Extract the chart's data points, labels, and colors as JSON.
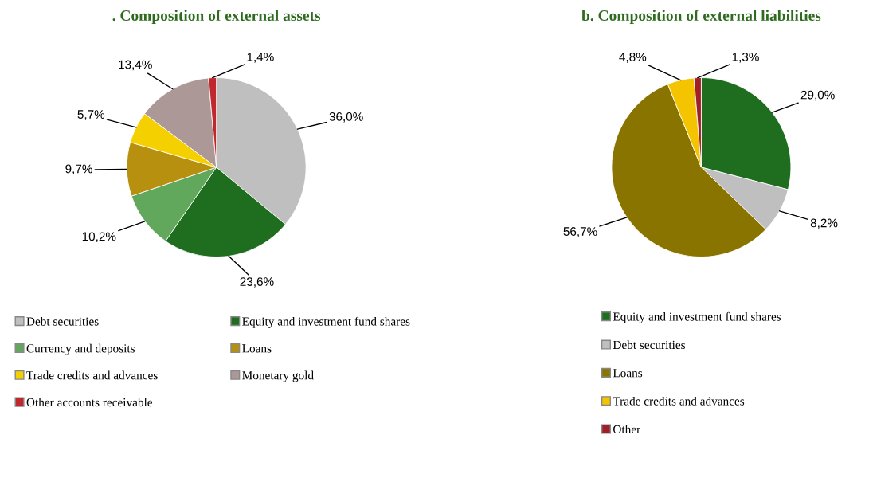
{
  "chart_data": [
    {
      "type": "pie",
      "title": ". Composition of external assets",
      "categories": [
        "Debt securities",
        "Equity and investment fund shares",
        "Currency and deposits",
        "Loans",
        "Trade credits and advances",
        "Monetary gold",
        "Other accounts receivable"
      ],
      "values": [
        36.0,
        23.6,
        10.2,
        9.7,
        5.7,
        13.4,
        1.4
      ],
      "value_labels": [
        "36,0%",
        "23,6%",
        "10,2%",
        "9,7%",
        "5,7%",
        "13,4%",
        "1,4%"
      ],
      "colors": [
        "#bfbfbf",
        "#1f6e1f",
        "#62a85c",
        "#b8900f",
        "#f5d000",
        "#ad9898",
        "#c0282d"
      ],
      "legend": "bottom"
    },
    {
      "type": "pie",
      "title": "b. Composition of external liabilities",
      "categories": [
        "Equity and investment fund shares",
        "Debt securities",
        "Loans",
        "Trade credits and advances",
        "Other"
      ],
      "values": [
        29.0,
        8.2,
        56.7,
        4.8,
        1.3
      ],
      "value_labels": [
        "29,0%",
        "8,2%",
        "56,7%",
        "4,8%",
        "1,3%"
      ],
      "colors": [
        "#1f6e1f",
        "#bfbfbf",
        "#8a7400",
        "#f5c400",
        "#a0202a"
      ],
      "legend": "bottom"
    }
  ]
}
